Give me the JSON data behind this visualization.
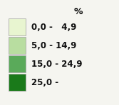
{
  "title": "%",
  "background_color": "#f5f5f0",
  "legend_items": [
    {
      "label": "0,0 -   4,9",
      "color": "#e8f5d0"
    },
    {
      "label": "5,0 - 14,9",
      "color": "#b8dda0"
    },
    {
      "label": "15,0 - 24,9",
      "color": "#5aaa5a"
    },
    {
      "label": "25,0 -",
      "color": "#1a7a1a"
    }
  ],
  "title_fontsize": 9,
  "label_fontsize": 8.5,
  "figsize": [
    1.67,
    1.48
  ],
  "dpi": 100
}
